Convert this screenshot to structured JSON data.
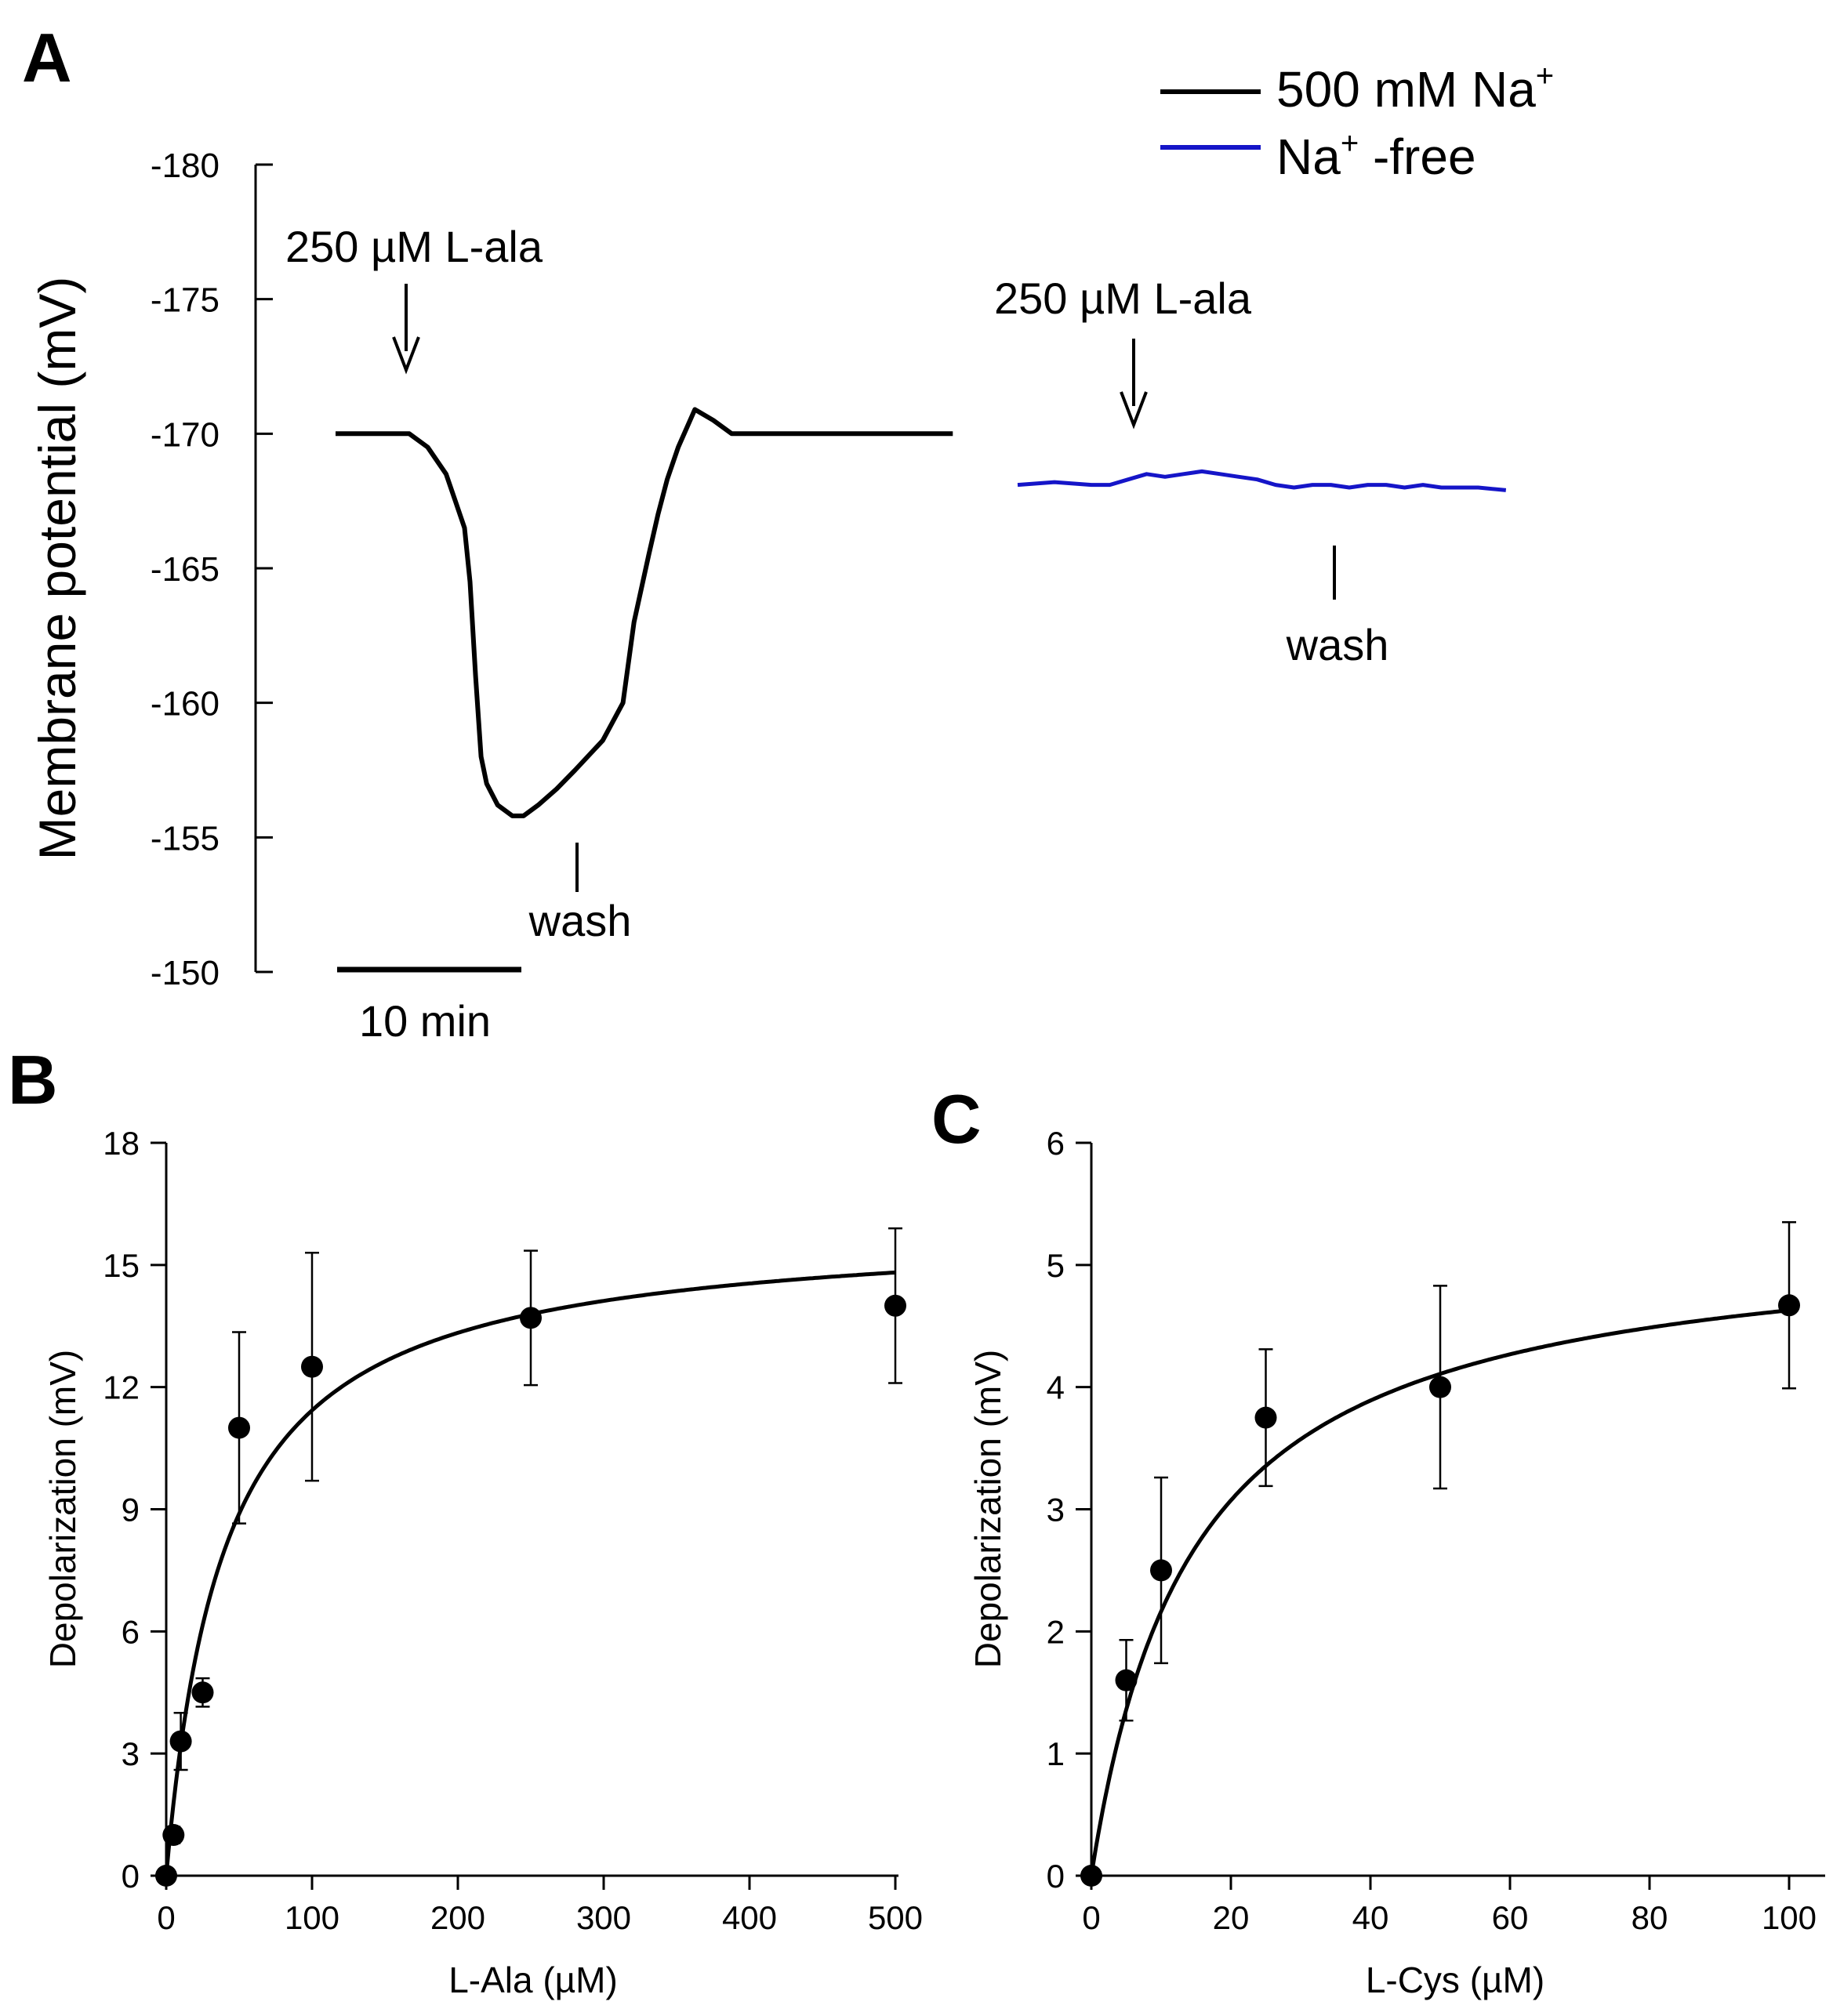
{
  "colors": {
    "na500": "#000000",
    "nafree": "#1515c8",
    "axis": "#000000"
  },
  "chart_data": [
    {
      "panel": "A",
      "type": "line",
      "ylabel": "Membrane potential (mV)",
      "ylim": [
        -180,
        -150
      ],
      "yticks": [
        -180,
        -175,
        -170,
        -165,
        -160,
        -155,
        -150
      ],
      "y_inverted": true,
      "scale_bar_label": "10 min",
      "scale_bar_minutes": 10,
      "legend": [
        {
          "label": "500 mM Na",
          "sup": "+",
          "suffix": "",
          "color": "#000000"
        },
        {
          "label": "Na",
          "sup": "+",
          "suffix": " -free",
          "color": "#1515c8"
        }
      ],
      "annotations": {
        "na500_application": "250 µM L-ala",
        "na500_wash": "wash",
        "nafree_application": "250 µM L-ala",
        "nafree_wash": "wash"
      },
      "series": [
        {
          "name": "500 mM Na+",
          "color": "#000000",
          "t_min": [
            0,
            4,
            5,
            6,
            6.5,
            7,
            7.3,
            7.6,
            7.9,
            8.2,
            8.8,
            9.6,
            10.2,
            11,
            12,
            13,
            14.5,
            15.6,
            16.2,
            17,
            17.5,
            18,
            18.6,
            19.5,
            20.5,
            21.5,
            22.3,
            22.8,
            23.3,
            24.5,
            26,
            28,
            30,
            33.5
          ],
          "mv": [
            -170,
            -170,
            -169.5,
            -168.5,
            -167.5,
            -166.5,
            -164.5,
            -161,
            -158,
            -157,
            -156.2,
            -155.8,
            -155.8,
            -156.2,
            -156.8,
            -157.5,
            -158.6,
            -160,
            -163,
            -165.5,
            -167,
            -168.3,
            -169.5,
            -170.9,
            -170.5,
            -170,
            -170,
            -170,
            -170,
            -170,
            -170,
            -170,
            -170,
            -170
          ]
        },
        {
          "name": "Na+ -free",
          "color": "#1515c8",
          "t_min": [
            0,
            2,
            4,
            5,
            6,
            7,
            8,
            9,
            10,
            11,
            12,
            13,
            14,
            15,
            16,
            17,
            18,
            19,
            20,
            21,
            22,
            23,
            24,
            25,
            26.5
          ],
          "mv": [
            -168.1,
            -168.2,
            -168.1,
            -168.1,
            -168.3,
            -168.5,
            -168.4,
            -168.5,
            -168.6,
            -168.5,
            -168.4,
            -168.3,
            -168.1,
            -168.0,
            -168.1,
            -168.1,
            -168.0,
            -168.1,
            -168.1,
            -168.0,
            -168.1,
            -168.0,
            -168.0,
            -168.0,
            -167.9
          ]
        }
      ]
    },
    {
      "panel": "B",
      "type": "scatter",
      "xlabel": "L-Ala (µM)",
      "ylabel": "Depolarization (mV)",
      "xlim": [
        0,
        500
      ],
      "ylim": [
        0,
        18
      ],
      "xticks": [
        0,
        100,
        200,
        300,
        400,
        500
      ],
      "yticks": [
        0,
        3,
        6,
        9,
        12,
        15,
        18
      ],
      "x": [
        0,
        5,
        10,
        25,
        50,
        100,
        250,
        500
      ],
      "y": [
        0,
        1.0,
        3.3,
        4.5,
        11.0,
        12.5,
        13.7,
        14.0
      ],
      "err": [
        0,
        0.2,
        0.7,
        0.35,
        2.35,
        2.8,
        1.65,
        1.9
      ],
      "fit": {
        "model": "michaelis-menten",
        "vmax": 16.0,
        "km": 40
      }
    },
    {
      "panel": "C",
      "type": "scatter",
      "xlabel": "L-Cys (µM)",
      "ylabel": "Depolarization (mV)",
      "xlim": [
        0,
        100
      ],
      "ylim": [
        0,
        6
      ],
      "xticks": [
        0,
        20,
        40,
        60,
        80,
        100
      ],
      "yticks": [
        0,
        1,
        2,
        3,
        4,
        5,
        6
      ],
      "x": [
        0,
        5,
        10,
        25,
        50,
        100
      ],
      "y": [
        0,
        1.6,
        2.5,
        3.75,
        4.0,
        4.67
      ],
      "err": [
        0,
        0.33,
        0.76,
        0.56,
        0.83,
        0.68
      ],
      "fit": {
        "model": "michaelis-menten",
        "vmax": 5.3,
        "km": 14.5
      }
    }
  ],
  "panel_labels": [
    "A",
    "B",
    "C"
  ]
}
